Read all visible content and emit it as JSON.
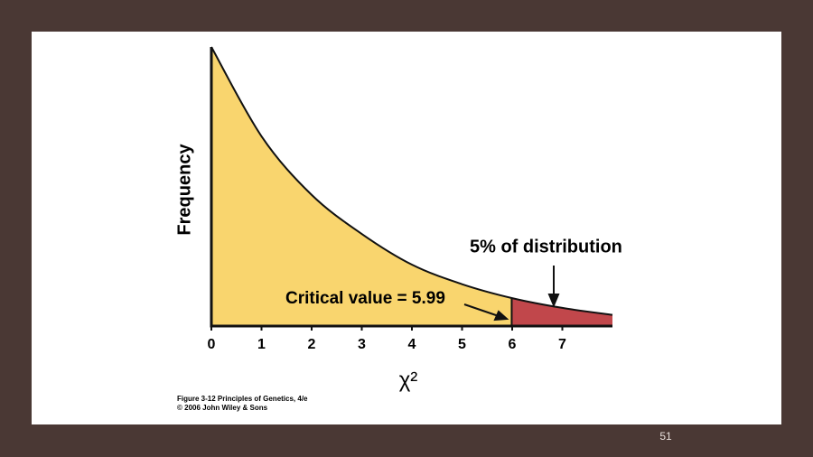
{
  "chart_data": {
    "type": "area",
    "y_label": "Frequency",
    "x_label": "χ²",
    "x": [
      0,
      1,
      2,
      3,
      4,
      5,
      6,
      7,
      8
    ],
    "values": [
      1,
      0.68,
      0.47,
      0.33,
      0.22,
      0.15,
      0.1,
      0.065,
      0.04
    ],
    "xlim": [
      0,
      8
    ],
    "ylim": [
      0,
      1
    ],
    "xticks": [
      0,
      1,
      2,
      3,
      4,
      5,
      6,
      7
    ],
    "critical_value": 5.99,
    "colors": {
      "body": "#f9d56e",
      "tail": "#c1474b",
      "line": "#111111"
    },
    "annotations": {
      "tail": "5% of distribution",
      "critical": "Critical value = 5.99"
    },
    "caption": [
      "Figure 3-12  Principles of Genetics, 4/e",
      "© 2006 John Wiley & Sons"
    ]
  },
  "page_number": "51"
}
